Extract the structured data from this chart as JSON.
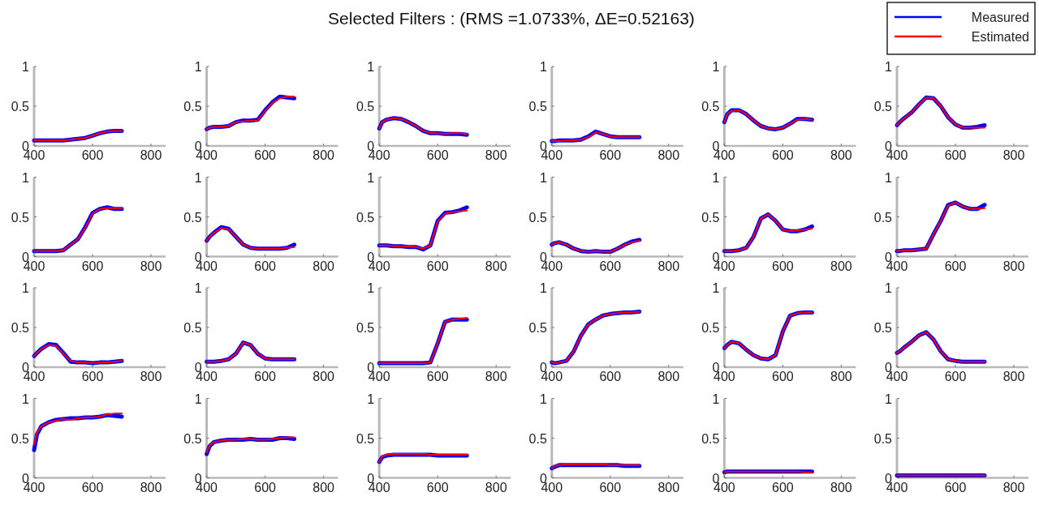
{
  "chart_data": [
    {
      "type": "line",
      "x": [
        400,
        410,
        425,
        450,
        475,
        500,
        525,
        550,
        575,
        600,
        625,
        650,
        675,
        700
      ],
      "xlim": [
        400,
        850
      ],
      "xticks": [
        400,
        600,
        800
      ],
      "ylim": [
        0,
        1
      ],
      "yticks": [
        0,
        0.5,
        1
      ],
      "series": [
        {
          "color": "#0000ff",
          "values": [
            0.07,
            0.07,
            0.07,
            0.07,
            0.07,
            0.07,
            0.08,
            0.09,
            0.1,
            0.13,
            0.16,
            0.18,
            0.19,
            0.19
          ]
        },
        {
          "color": "#ff0000",
          "values": [
            0.07,
            0.07,
            0.07,
            0.07,
            0.07,
            0.07,
            0.08,
            0.09,
            0.1,
            0.13,
            0.16,
            0.18,
            0.19,
            0.19
          ]
        }
      ]
    },
    {
      "type": "line",
      "x": [
        400,
        410,
        425,
        450,
        475,
        500,
        525,
        550,
        575,
        600,
        625,
        650,
        675,
        700
      ],
      "xlim": [
        400,
        850
      ],
      "xticks": [
        400,
        600,
        800
      ],
      "ylim": [
        0,
        1
      ],
      "yticks": [
        0,
        0.5,
        1
      ],
      "series": [
        {
          "color": "#0000ff",
          "values": [
            0.21,
            0.23,
            0.24,
            0.24,
            0.25,
            0.3,
            0.32,
            0.32,
            0.33,
            0.45,
            0.55,
            0.62,
            0.61,
            0.6
          ]
        },
        {
          "color": "#ff0000",
          "values": [
            0.21,
            0.23,
            0.24,
            0.24,
            0.25,
            0.3,
            0.31,
            0.32,
            0.32,
            0.44,
            0.54,
            0.6,
            0.62,
            0.62
          ]
        }
      ]
    },
    {
      "type": "line",
      "title": "Selected Filters : (RMS =1.0733%,   ΔE=0.52163)",
      "x": [
        400,
        410,
        425,
        450,
        475,
        500,
        525,
        550,
        575,
        600,
        625,
        650,
        675,
        700
      ],
      "xlim": [
        400,
        850
      ],
      "xticks": [
        400,
        600,
        800
      ],
      "ylim": [
        0,
        1
      ],
      "yticks": [
        0,
        0.5,
        1
      ],
      "series": [
        {
          "color": "#0000ff",
          "values": [
            0.22,
            0.3,
            0.33,
            0.35,
            0.34,
            0.3,
            0.25,
            0.19,
            0.16,
            0.16,
            0.15,
            0.15,
            0.15,
            0.14
          ]
        },
        {
          "color": "#ff0000",
          "values": [
            0.22,
            0.3,
            0.33,
            0.35,
            0.34,
            0.3,
            0.25,
            0.19,
            0.16,
            0.16,
            0.15,
            0.16,
            0.16,
            0.15
          ]
        }
      ]
    },
    {
      "type": "line",
      "x": [
        400,
        410,
        425,
        450,
        475,
        500,
        525,
        550,
        575,
        600,
        625,
        650,
        675,
        700
      ],
      "xlim": [
        400,
        850
      ],
      "xticks": [
        400,
        600,
        800
      ],
      "ylim": [
        0,
        1
      ],
      "yticks": [
        0,
        0.5,
        1
      ],
      "series": [
        {
          "color": "#0000ff",
          "values": [
            0.06,
            0.06,
            0.07,
            0.07,
            0.07,
            0.08,
            0.12,
            0.18,
            0.15,
            0.12,
            0.11,
            0.11,
            0.11,
            0.11
          ]
        },
        {
          "color": "#ff0000",
          "values": [
            0.06,
            0.06,
            0.06,
            0.07,
            0.07,
            0.08,
            0.11,
            0.17,
            0.15,
            0.12,
            0.11,
            0.11,
            0.11,
            0.11
          ]
        }
      ]
    },
    {
      "type": "line",
      "x": [
        400,
        410,
        425,
        450,
        475,
        500,
        525,
        550,
        575,
        600,
        625,
        650,
        675,
        700
      ],
      "xlim": [
        400,
        850
      ],
      "xticks": [
        400,
        600,
        800
      ],
      "ylim": [
        0,
        1
      ],
      "yticks": [
        0,
        0.5,
        1
      ],
      "series": [
        {
          "color": "#0000ff",
          "values": [
            0.3,
            0.4,
            0.45,
            0.45,
            0.4,
            0.32,
            0.25,
            0.22,
            0.21,
            0.23,
            0.28,
            0.34,
            0.34,
            0.33
          ]
        },
        {
          "color": "#ff0000",
          "values": [
            0.3,
            0.4,
            0.44,
            0.45,
            0.4,
            0.32,
            0.25,
            0.22,
            0.21,
            0.23,
            0.28,
            0.33,
            0.34,
            0.33
          ]
        }
      ]
    },
    {
      "type": "line",
      "legend": "top right",
      "x": [
        400,
        410,
        425,
        450,
        475,
        500,
        525,
        550,
        575,
        600,
        625,
        650,
        675,
        700
      ],
      "xlim": [
        400,
        850
      ],
      "xticks": [
        400,
        600,
        800
      ],
      "ylim": [
        0,
        1
      ],
      "yticks": [
        0,
        0.5,
        1
      ],
      "series": [
        {
          "name": "Measured",
          "color": "#0000ff",
          "values": [
            0.26,
            0.3,
            0.35,
            0.42,
            0.52,
            0.61,
            0.6,
            0.5,
            0.36,
            0.27,
            0.23,
            0.23,
            0.24,
            0.26
          ]
        },
        {
          "name": "Estimated",
          "color": "#ff0000",
          "values": [
            0.26,
            0.3,
            0.35,
            0.42,
            0.52,
            0.61,
            0.6,
            0.5,
            0.36,
            0.27,
            0.23,
            0.23,
            0.23,
            0.23
          ]
        }
      ]
    },
    {
      "type": "line",
      "x": [
        400,
        410,
        425,
        450,
        475,
        500,
        525,
        550,
        575,
        600,
        625,
        650,
        675,
        700
      ],
      "xlim": [
        400,
        850
      ],
      "xticks": [
        400,
        600,
        800
      ],
      "ylim": [
        0,
        1
      ],
      "yticks": [
        0,
        0.5,
        1
      ],
      "series": [
        {
          "color": "#0000ff",
          "values": [
            0.07,
            0.07,
            0.07,
            0.07,
            0.07,
            0.08,
            0.15,
            0.22,
            0.37,
            0.55,
            0.6,
            0.62,
            0.6,
            0.6
          ]
        },
        {
          "color": "#ff0000",
          "values": [
            0.07,
            0.07,
            0.07,
            0.07,
            0.07,
            0.08,
            0.15,
            0.22,
            0.36,
            0.54,
            0.6,
            0.61,
            0.61,
            0.61
          ]
        }
      ]
    },
    {
      "type": "line",
      "x": [
        400,
        410,
        425,
        450,
        475,
        500,
        525,
        550,
        575,
        600,
        625,
        650,
        675,
        700
      ],
      "xlim": [
        400,
        850
      ],
      "xticks": [
        400,
        600,
        800
      ],
      "ylim": [
        0,
        1
      ],
      "yticks": [
        0,
        0.5,
        1
      ],
      "series": [
        {
          "color": "#0000ff",
          "values": [
            0.2,
            0.25,
            0.3,
            0.37,
            0.35,
            0.25,
            0.15,
            0.11,
            0.1,
            0.1,
            0.1,
            0.1,
            0.11,
            0.15
          ]
        },
        {
          "color": "#ff0000",
          "values": [
            0.2,
            0.25,
            0.3,
            0.36,
            0.34,
            0.25,
            0.15,
            0.11,
            0.1,
            0.1,
            0.1,
            0.1,
            0.11,
            0.12
          ]
        }
      ]
    },
    {
      "type": "line",
      "x": [
        400,
        410,
        425,
        450,
        475,
        500,
        525,
        550,
        575,
        600,
        625,
        650,
        675,
        700
      ],
      "xlim": [
        400,
        850
      ],
      "xticks": [
        400,
        600,
        800
      ],
      "ylim": [
        0,
        1
      ],
      "yticks": [
        0,
        0.5,
        1
      ],
      "series": [
        {
          "color": "#0000ff",
          "values": [
            0.14,
            0.14,
            0.14,
            0.13,
            0.13,
            0.12,
            0.12,
            0.09,
            0.14,
            0.45,
            0.55,
            0.56,
            0.58,
            0.62
          ]
        },
        {
          "color": "#ff0000",
          "values": [
            0.14,
            0.14,
            0.14,
            0.13,
            0.13,
            0.13,
            0.12,
            0.1,
            0.14,
            0.44,
            0.54,
            0.56,
            0.57,
            0.58
          ]
        }
      ]
    },
    {
      "type": "line",
      "x": [
        400,
        410,
        425,
        450,
        475,
        500,
        525,
        550,
        575,
        600,
        625,
        650,
        675,
        700
      ],
      "xlim": [
        400,
        850
      ],
      "xticks": [
        400,
        600,
        800
      ],
      "ylim": [
        0,
        1
      ],
      "yticks": [
        0,
        0.5,
        1
      ],
      "series": [
        {
          "color": "#0000ff",
          "values": [
            0.15,
            0.17,
            0.18,
            0.15,
            0.1,
            0.07,
            0.06,
            0.07,
            0.06,
            0.06,
            0.1,
            0.15,
            0.19,
            0.21
          ]
        },
        {
          "color": "#ff0000",
          "values": [
            0.15,
            0.17,
            0.18,
            0.15,
            0.1,
            0.07,
            0.06,
            0.07,
            0.06,
            0.06,
            0.1,
            0.15,
            0.18,
            0.2
          ]
        }
      ]
    },
    {
      "type": "line",
      "x": [
        400,
        410,
        425,
        450,
        475,
        500,
        525,
        550,
        575,
        600,
        625,
        650,
        675,
        700
      ],
      "xlim": [
        400,
        850
      ],
      "xticks": [
        400,
        600,
        800
      ],
      "ylim": [
        0,
        1
      ],
      "yticks": [
        0,
        0.5,
        1
      ],
      "series": [
        {
          "color": "#0000ff",
          "values": [
            0.07,
            0.07,
            0.07,
            0.08,
            0.11,
            0.25,
            0.48,
            0.53,
            0.45,
            0.34,
            0.32,
            0.32,
            0.34,
            0.38
          ]
        },
        {
          "color": "#ff0000",
          "values": [
            0.07,
            0.07,
            0.07,
            0.08,
            0.11,
            0.25,
            0.48,
            0.53,
            0.45,
            0.34,
            0.32,
            0.33,
            0.34,
            0.35
          ]
        }
      ]
    },
    {
      "type": "line",
      "x": [
        400,
        410,
        425,
        450,
        475,
        500,
        525,
        550,
        575,
        600,
        625,
        650,
        675,
        700
      ],
      "xlim": [
        400,
        850
      ],
      "xticks": [
        400,
        600,
        800
      ],
      "ylim": [
        0,
        1
      ],
      "yticks": [
        0,
        0.5,
        1
      ],
      "series": [
        {
          "color": "#0000ff",
          "values": [
            0.07,
            0.07,
            0.08,
            0.08,
            0.09,
            0.1,
            0.28,
            0.45,
            0.65,
            0.68,
            0.63,
            0.6,
            0.6,
            0.65
          ]
        },
        {
          "color": "#ff0000",
          "values": [
            0.07,
            0.07,
            0.08,
            0.08,
            0.09,
            0.1,
            0.28,
            0.45,
            0.64,
            0.68,
            0.63,
            0.6,
            0.6,
            0.61
          ]
        }
      ]
    },
    {
      "type": "line",
      "x": [
        400,
        410,
        425,
        450,
        475,
        500,
        525,
        550,
        575,
        600,
        625,
        650,
        675,
        700
      ],
      "xlim": [
        400,
        850
      ],
      "xticks": [
        400,
        600,
        800
      ],
      "ylim": [
        0,
        1
      ],
      "yticks": [
        0,
        0.5,
        1
      ],
      "series": [
        {
          "color": "#0000ff",
          "values": [
            0.14,
            0.18,
            0.23,
            0.29,
            0.28,
            0.18,
            0.07,
            0.06,
            0.06,
            0.05,
            0.06,
            0.06,
            0.07,
            0.08
          ]
        },
        {
          "color": "#ff0000",
          "values": [
            0.14,
            0.18,
            0.23,
            0.28,
            0.27,
            0.17,
            0.08,
            0.06,
            0.06,
            0.05,
            0.06,
            0.06,
            0.07,
            0.08
          ]
        }
      ]
    },
    {
      "type": "line",
      "x": [
        400,
        410,
        425,
        450,
        475,
        500,
        525,
        550,
        575,
        600,
        625,
        650,
        675,
        700
      ],
      "xlim": [
        400,
        850
      ],
      "xticks": [
        400,
        600,
        800
      ],
      "ylim": [
        0,
        1
      ],
      "yticks": [
        0,
        0.5,
        1
      ],
      "series": [
        {
          "color": "#0000ff",
          "values": [
            0.07,
            0.07,
            0.07,
            0.08,
            0.1,
            0.17,
            0.31,
            0.28,
            0.17,
            0.11,
            0.1,
            0.1,
            0.1,
            0.1
          ]
        },
        {
          "color": "#ff0000",
          "values": [
            0.07,
            0.07,
            0.07,
            0.08,
            0.1,
            0.17,
            0.31,
            0.28,
            0.17,
            0.11,
            0.1,
            0.1,
            0.1,
            0.1
          ]
        }
      ]
    },
    {
      "type": "line",
      "x": [
        400,
        410,
        425,
        450,
        475,
        500,
        525,
        550,
        575,
        600,
        625,
        650,
        675,
        700
      ],
      "xlim": [
        400,
        850
      ],
      "xticks": [
        400,
        600,
        800
      ],
      "ylim": [
        0,
        1
      ],
      "yticks": [
        0,
        0.5,
        1
      ],
      "series": [
        {
          "color": "#0000ff",
          "values": [
            0.05,
            0.05,
            0.05,
            0.05,
            0.05,
            0.05,
            0.05,
            0.05,
            0.06,
            0.3,
            0.57,
            0.6,
            0.6,
            0.6
          ]
        },
        {
          "color": "#ff0000",
          "values": [
            0.05,
            0.05,
            0.05,
            0.05,
            0.05,
            0.05,
            0.05,
            0.05,
            0.06,
            0.3,
            0.57,
            0.6,
            0.61,
            0.62
          ]
        }
      ]
    },
    {
      "type": "line",
      "x": [
        400,
        410,
        425,
        450,
        475,
        500,
        525,
        550,
        575,
        600,
        625,
        650,
        675,
        700
      ],
      "xlim": [
        400,
        850
      ],
      "xticks": [
        400,
        600,
        800
      ],
      "ylim": [
        0,
        1
      ],
      "yticks": [
        0,
        0.5,
        1
      ],
      "series": [
        {
          "color": "#0000ff",
          "values": [
            0.06,
            0.05,
            0.06,
            0.08,
            0.2,
            0.4,
            0.54,
            0.6,
            0.65,
            0.67,
            0.68,
            0.69,
            0.69,
            0.7
          ]
        },
        {
          "color": "#ff0000",
          "values": [
            0.06,
            0.05,
            0.06,
            0.08,
            0.2,
            0.4,
            0.54,
            0.6,
            0.65,
            0.67,
            0.68,
            0.69,
            0.69,
            0.7
          ]
        }
      ]
    },
    {
      "type": "line",
      "x": [
        400,
        410,
        425,
        450,
        475,
        500,
        525,
        550,
        575,
        600,
        625,
        650,
        675,
        700
      ],
      "xlim": [
        400,
        850
      ],
      "xticks": [
        400,
        600,
        800
      ],
      "ylim": [
        0,
        1
      ],
      "yticks": [
        0,
        0.5,
        1
      ],
      "series": [
        {
          "color": "#0000ff",
          "values": [
            0.24,
            0.28,
            0.32,
            0.3,
            0.22,
            0.15,
            0.11,
            0.1,
            0.15,
            0.45,
            0.65,
            0.68,
            0.69,
            0.69
          ]
        },
        {
          "color": "#ff0000",
          "values": [
            0.24,
            0.28,
            0.32,
            0.3,
            0.22,
            0.15,
            0.11,
            0.1,
            0.15,
            0.45,
            0.65,
            0.68,
            0.69,
            0.69
          ]
        }
      ]
    },
    {
      "type": "line",
      "x": [
        400,
        410,
        425,
        450,
        475,
        500,
        525,
        550,
        575,
        600,
        625,
        650,
        675,
        700
      ],
      "xlim": [
        400,
        850
      ],
      "xticks": [
        400,
        600,
        800
      ],
      "ylim": [
        0,
        1
      ],
      "yticks": [
        0,
        0.5,
        1
      ],
      "series": [
        {
          "color": "#0000ff",
          "values": [
            0.18,
            0.2,
            0.25,
            0.32,
            0.4,
            0.44,
            0.35,
            0.2,
            0.1,
            0.08,
            0.07,
            0.07,
            0.07,
            0.07
          ]
        },
        {
          "color": "#ff0000",
          "values": [
            0.18,
            0.2,
            0.25,
            0.32,
            0.4,
            0.44,
            0.35,
            0.2,
            0.1,
            0.08,
            0.07,
            0.07,
            0.07,
            0.07
          ]
        }
      ]
    },
    {
      "type": "line",
      "x": [
        400,
        410,
        425,
        450,
        475,
        500,
        525,
        550,
        575,
        600,
        625,
        650,
        675,
        700
      ],
      "xlim": [
        400,
        850
      ],
      "xticks": [
        400,
        600,
        800
      ],
      "ylim": [
        0,
        1
      ],
      "yticks": [
        0,
        0.5,
        1
      ],
      "series": [
        {
          "color": "#0000ff",
          "values": [
            0.35,
            0.55,
            0.65,
            0.7,
            0.73,
            0.74,
            0.75,
            0.75,
            0.76,
            0.76,
            0.77,
            0.79,
            0.78,
            0.77
          ]
        },
        {
          "color": "#ff0000",
          "values": [
            0.42,
            0.57,
            0.65,
            0.7,
            0.72,
            0.74,
            0.73,
            0.75,
            0.76,
            0.76,
            0.77,
            0.8,
            0.81,
            0.81
          ]
        }
      ]
    },
    {
      "type": "line",
      "x": [
        400,
        410,
        425,
        450,
        475,
        500,
        525,
        550,
        575,
        600,
        625,
        650,
        675,
        700
      ],
      "xlim": [
        400,
        850
      ],
      "xticks": [
        400,
        600,
        800
      ],
      "ylim": [
        0,
        1
      ],
      "yticks": [
        0,
        0.5,
        1
      ],
      "series": [
        {
          "color": "#0000ff",
          "values": [
            0.3,
            0.4,
            0.45,
            0.47,
            0.48,
            0.48,
            0.48,
            0.49,
            0.48,
            0.48,
            0.48,
            0.5,
            0.5,
            0.49
          ]
        },
        {
          "color": "#ff0000",
          "values": [
            0.32,
            0.41,
            0.45,
            0.47,
            0.48,
            0.48,
            0.49,
            0.49,
            0.48,
            0.48,
            0.49,
            0.5,
            0.51,
            0.51
          ]
        }
      ]
    },
    {
      "type": "line",
      "x": [
        400,
        410,
        425,
        450,
        475,
        500,
        525,
        550,
        575,
        600,
        625,
        650,
        675,
        700
      ],
      "xlim": [
        400,
        850
      ],
      "xticks": [
        400,
        600,
        800
      ],
      "ylim": [
        0,
        1
      ],
      "yticks": [
        0,
        0.5,
        1
      ],
      "series": [
        {
          "color": "#0000ff",
          "values": [
            0.2,
            0.26,
            0.28,
            0.29,
            0.29,
            0.29,
            0.29,
            0.29,
            0.29,
            0.28,
            0.28,
            0.28,
            0.28,
            0.28
          ]
        },
        {
          "color": "#ff0000",
          "values": [
            0.2,
            0.27,
            0.29,
            0.3,
            0.3,
            0.3,
            0.3,
            0.3,
            0.29,
            0.29,
            0.29,
            0.29,
            0.29,
            0.29
          ]
        }
      ]
    },
    {
      "type": "line",
      "x": [
        400,
        410,
        425,
        450,
        475,
        500,
        525,
        550,
        575,
        600,
        625,
        650,
        675,
        700
      ],
      "xlim": [
        400,
        850
      ],
      "xticks": [
        400,
        600,
        800
      ],
      "ylim": [
        0,
        1
      ],
      "yticks": [
        0,
        0.5,
        1
      ],
      "series": [
        {
          "color": "#0000ff",
          "values": [
            0.12,
            0.14,
            0.16,
            0.16,
            0.16,
            0.16,
            0.16,
            0.16,
            0.16,
            0.16,
            0.16,
            0.15,
            0.15,
            0.15
          ]
        },
        {
          "color": "#ff0000",
          "values": [
            0.12,
            0.15,
            0.16,
            0.17,
            0.17,
            0.17,
            0.17,
            0.17,
            0.17,
            0.16,
            0.16,
            0.16,
            0.16,
            0.16
          ]
        }
      ]
    },
    {
      "type": "line",
      "x": [
        400,
        410,
        425,
        450,
        475,
        500,
        525,
        550,
        575,
        600,
        625,
        650,
        675,
        700
      ],
      "xlim": [
        400,
        850
      ],
      "xticks": [
        400,
        600,
        800
      ],
      "ylim": [
        0,
        1
      ],
      "yticks": [
        0,
        0.5,
        1
      ],
      "series": [
        {
          "color": "#0000ff",
          "values": [
            0.07,
            0.08,
            0.08,
            0.08,
            0.08,
            0.08,
            0.08,
            0.08,
            0.08,
            0.08,
            0.08,
            0.08,
            0.08,
            0.08
          ]
        },
        {
          "color": "#ff0000",
          "values": [
            0.07,
            0.08,
            0.08,
            0.08,
            0.08,
            0.08,
            0.08,
            0.08,
            0.08,
            0.08,
            0.08,
            0.08,
            0.07,
            0.07
          ]
        }
      ]
    },
    {
      "type": "line",
      "x": [
        400,
        410,
        425,
        450,
        475,
        500,
        525,
        550,
        575,
        600,
        625,
        650,
        675,
        700
      ],
      "xlim": [
        400,
        850
      ],
      "xticks": [
        400,
        600,
        800
      ],
      "ylim": [
        0,
        1
      ],
      "yticks": [
        0,
        0.5,
        1
      ],
      "series": [
        {
          "color": "#0000ff",
          "values": [
            0.03,
            0.03,
            0.03,
            0.03,
            0.03,
            0.03,
            0.03,
            0.03,
            0.03,
            0.03,
            0.03,
            0.03,
            0.03,
            0.03
          ]
        },
        {
          "color": "#ff0000",
          "values": [
            0.03,
            0.03,
            0.03,
            0.03,
            0.03,
            0.03,
            0.03,
            0.03,
            0.03,
            0.03,
            0.03,
            0.03,
            0.03,
            0.03
          ]
        }
      ]
    }
  ]
}
